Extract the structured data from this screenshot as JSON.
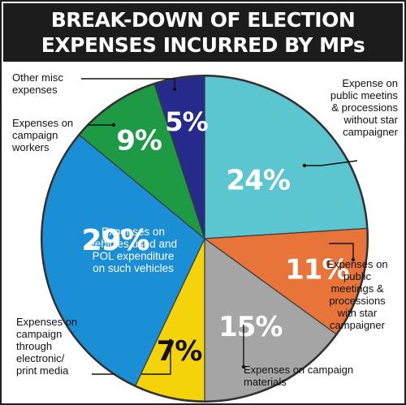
{
  "title": {
    "line1": "BREAK-DOWN OF ELECTION",
    "line2": "EXPENSES INCURRED BY MPs"
  },
  "colors": {
    "title_bg": "#1c1c1c",
    "pie_border": "#2b2b2b"
  },
  "chart_data": {
    "type": "pie",
    "unit": "%",
    "slices": [
      {
        "label": "Expense on public meetins & processions without star campaigner",
        "label_lines": [
          "Expense on",
          "public meetins",
          "& processions",
          "without star",
          "campaigner"
        ],
        "value": 24,
        "value_text": "24%",
        "color": "#5bc5d0"
      },
      {
        "label": "Expenses on public meetings & processions with star campaigner",
        "label_lines": [
          "Expenses on",
          "public",
          "meetings &",
          "processions",
          "with star",
          "campaigner"
        ],
        "value": 11,
        "value_text": "11%",
        "color": "#e8743a"
      },
      {
        "label": "Expenses on campaign materials",
        "label_lines": [
          "Expenses on  campaign",
          "materials"
        ],
        "value": 15,
        "value_text": "15%",
        "color": "#a5a5a5"
      },
      {
        "label": "Expenses on campaign through electronic/ print media",
        "label_lines": [
          "Expenses on",
          "campaign",
          "through",
          "electronic/",
          "print media"
        ],
        "value": 7,
        "value_text": "7%",
        "color": "#f5d30a"
      },
      {
        "label": "Expenses on vehicles used and POL expenditure on such vehicles",
        "label_lines": [
          "Expenses on",
          "vehicles used and",
          "POL expenditure",
          "on such vehicles"
        ],
        "value": 29,
        "value_text": "29%",
        "color": "#1b8fd6"
      },
      {
        "label": "Expenses on campaign workers",
        "label_lines": [
          "Expenses on",
          "campaign",
          "workers"
        ],
        "value": 9,
        "value_text": "9%",
        "color": "#1e9a45"
      },
      {
        "label": "Other misc expenses",
        "label_lines": [
          "Other misc",
          "expenses"
        ],
        "value": 5,
        "value_text": "5%",
        "color": "#262a8a"
      }
    ]
  }
}
